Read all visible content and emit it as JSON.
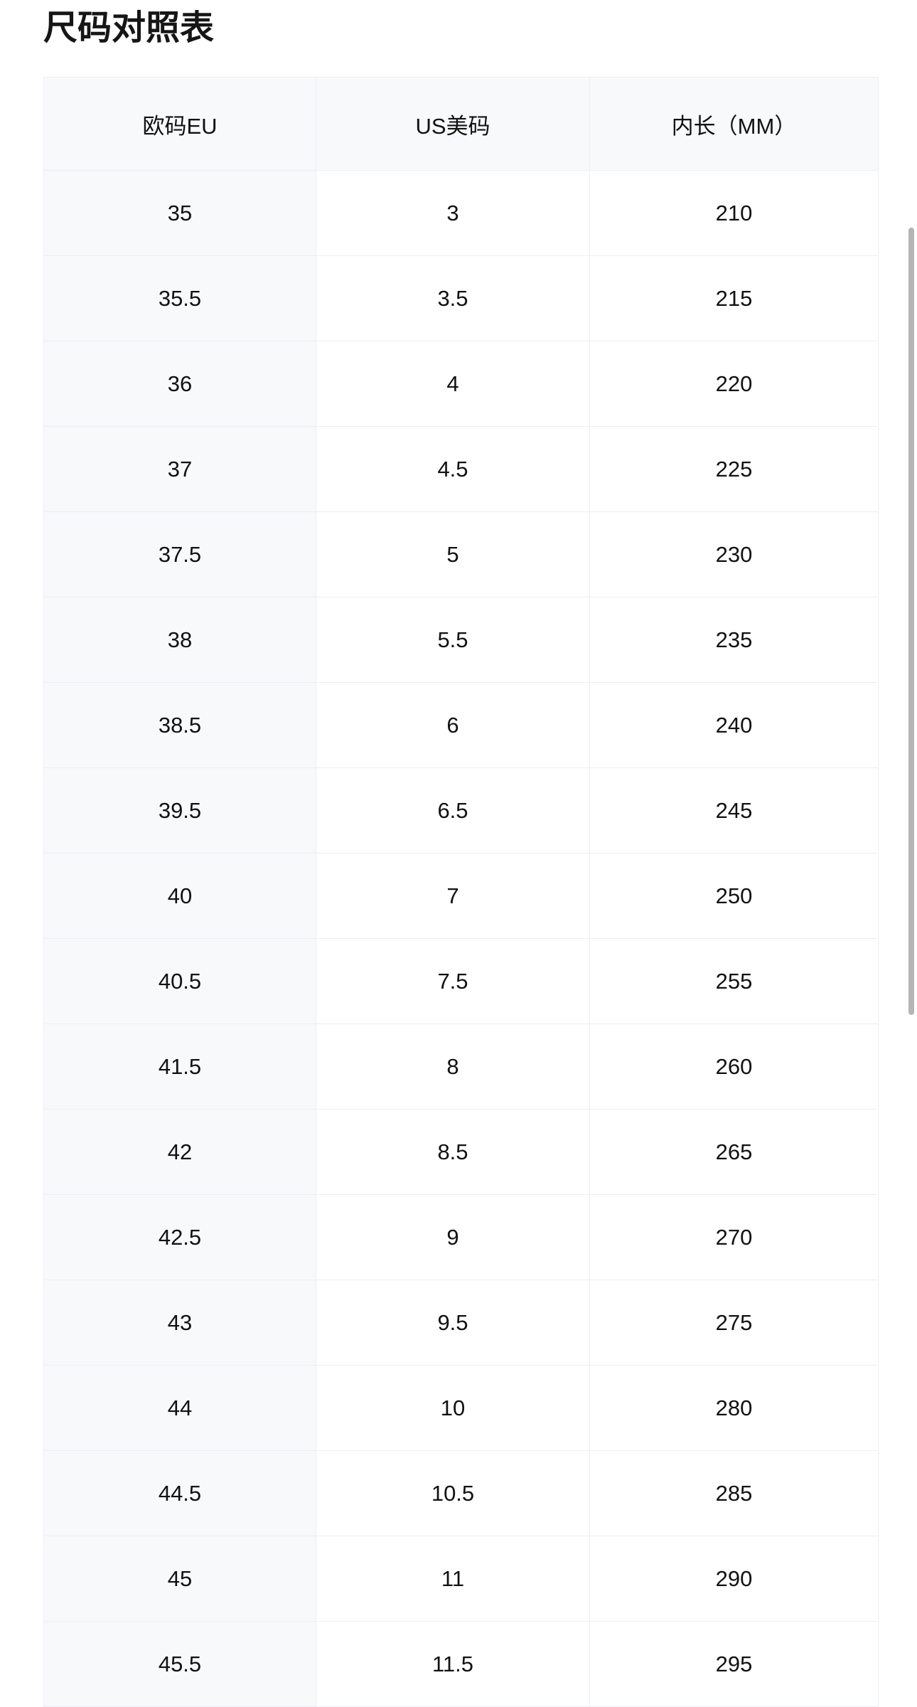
{
  "title": "尺码对照表",
  "table": {
    "headers": [
      "欧码EU",
      "US美码",
      "内长（MM）"
    ],
    "rows": [
      [
        "35",
        "3",
        "210"
      ],
      [
        "35.5",
        "3.5",
        "215"
      ],
      [
        "36",
        "4",
        "220"
      ],
      [
        "37",
        "4.5",
        "225"
      ],
      [
        "37.5",
        "5",
        "230"
      ],
      [
        "38",
        "5.5",
        "235"
      ],
      [
        "38.5",
        "6",
        "240"
      ],
      [
        "39.5",
        "6.5",
        "245"
      ],
      [
        "40",
        "7",
        "250"
      ],
      [
        "40.5",
        "7.5",
        "255"
      ],
      [
        "41.5",
        "8",
        "260"
      ],
      [
        "42",
        "8.5",
        "265"
      ],
      [
        "42.5",
        "9",
        "270"
      ],
      [
        "43",
        "9.5",
        "275"
      ],
      [
        "44",
        "10",
        "280"
      ],
      [
        "44.5",
        "10.5",
        "285"
      ],
      [
        "45",
        "11",
        "290"
      ],
      [
        "45.5",
        "11.5",
        "295"
      ]
    ]
  },
  "colors": {
    "header_bg": "#f8f9fb",
    "border": "#eeeff2",
    "scrollbar": "#b5b5b5"
  }
}
